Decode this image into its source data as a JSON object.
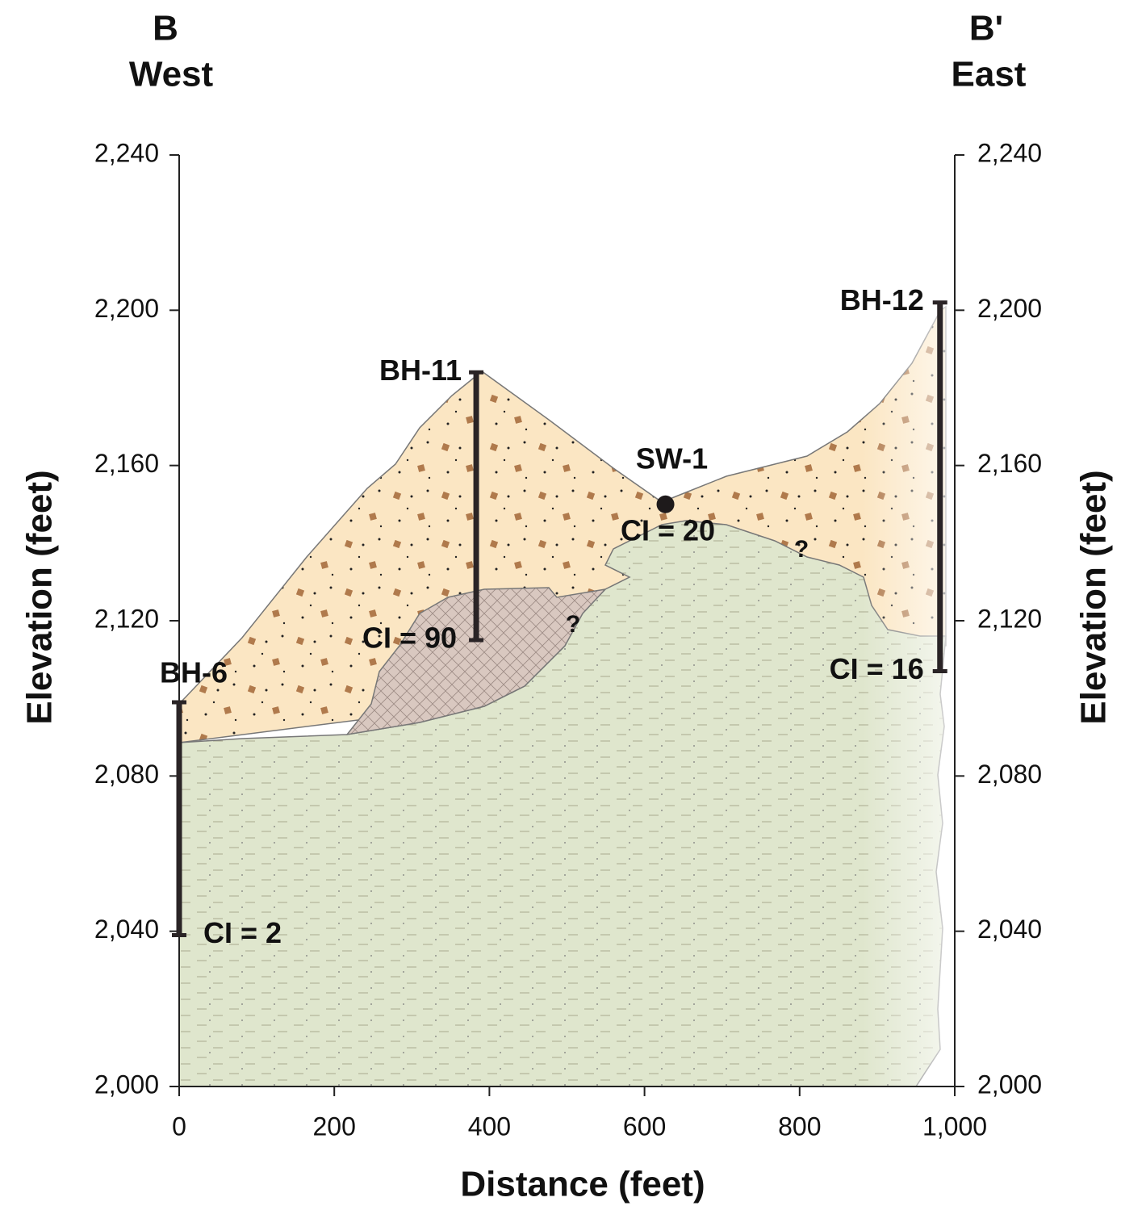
{
  "chart_data": {
    "type": "cross-section",
    "title_left": "B",
    "subtitle_left": "West",
    "title_right": "B'",
    "subtitle_right": "East",
    "xlabel": "Distance (feet)",
    "ylabel": "Elevation (feet)",
    "xlim": [
      0,
      1000
    ],
    "ylim": [
      2000,
      2240
    ],
    "xticks": [
      0,
      200,
      400,
      600,
      800,
      {
        "value": 1000,
        "label": "1,000"
      }
    ],
    "yticks": [
      {
        "value": 2000,
        "label": "2,000"
      },
      {
        "value": 2040,
        "label": "2,040"
      },
      {
        "value": 2080,
        "label": "2,080"
      },
      {
        "value": 2120,
        "label": "2,120"
      },
      {
        "value": 2160,
        "label": "2,160"
      },
      {
        "value": 2200,
        "label": "2,200"
      },
      {
        "value": 2240,
        "label": "2,240"
      }
    ],
    "boreholes": [
      {
        "name": "BH-6",
        "x": 0,
        "top": 2099,
        "bottom": 2039,
        "label": "CI = 2"
      },
      {
        "name": "BH-11",
        "x": 383,
        "top": 2184,
        "bottom": 2115,
        "label": "CI = 90"
      },
      {
        "name": "BH-12",
        "x": 981,
        "top": 2202,
        "bottom": 2107,
        "label": "CI = 16"
      }
    ],
    "sample": {
      "name": "SW-1",
      "x": 627,
      "y": 2150,
      "label": "CI = 20"
    },
    "annotations": [
      "?",
      "?"
    ]
  }
}
